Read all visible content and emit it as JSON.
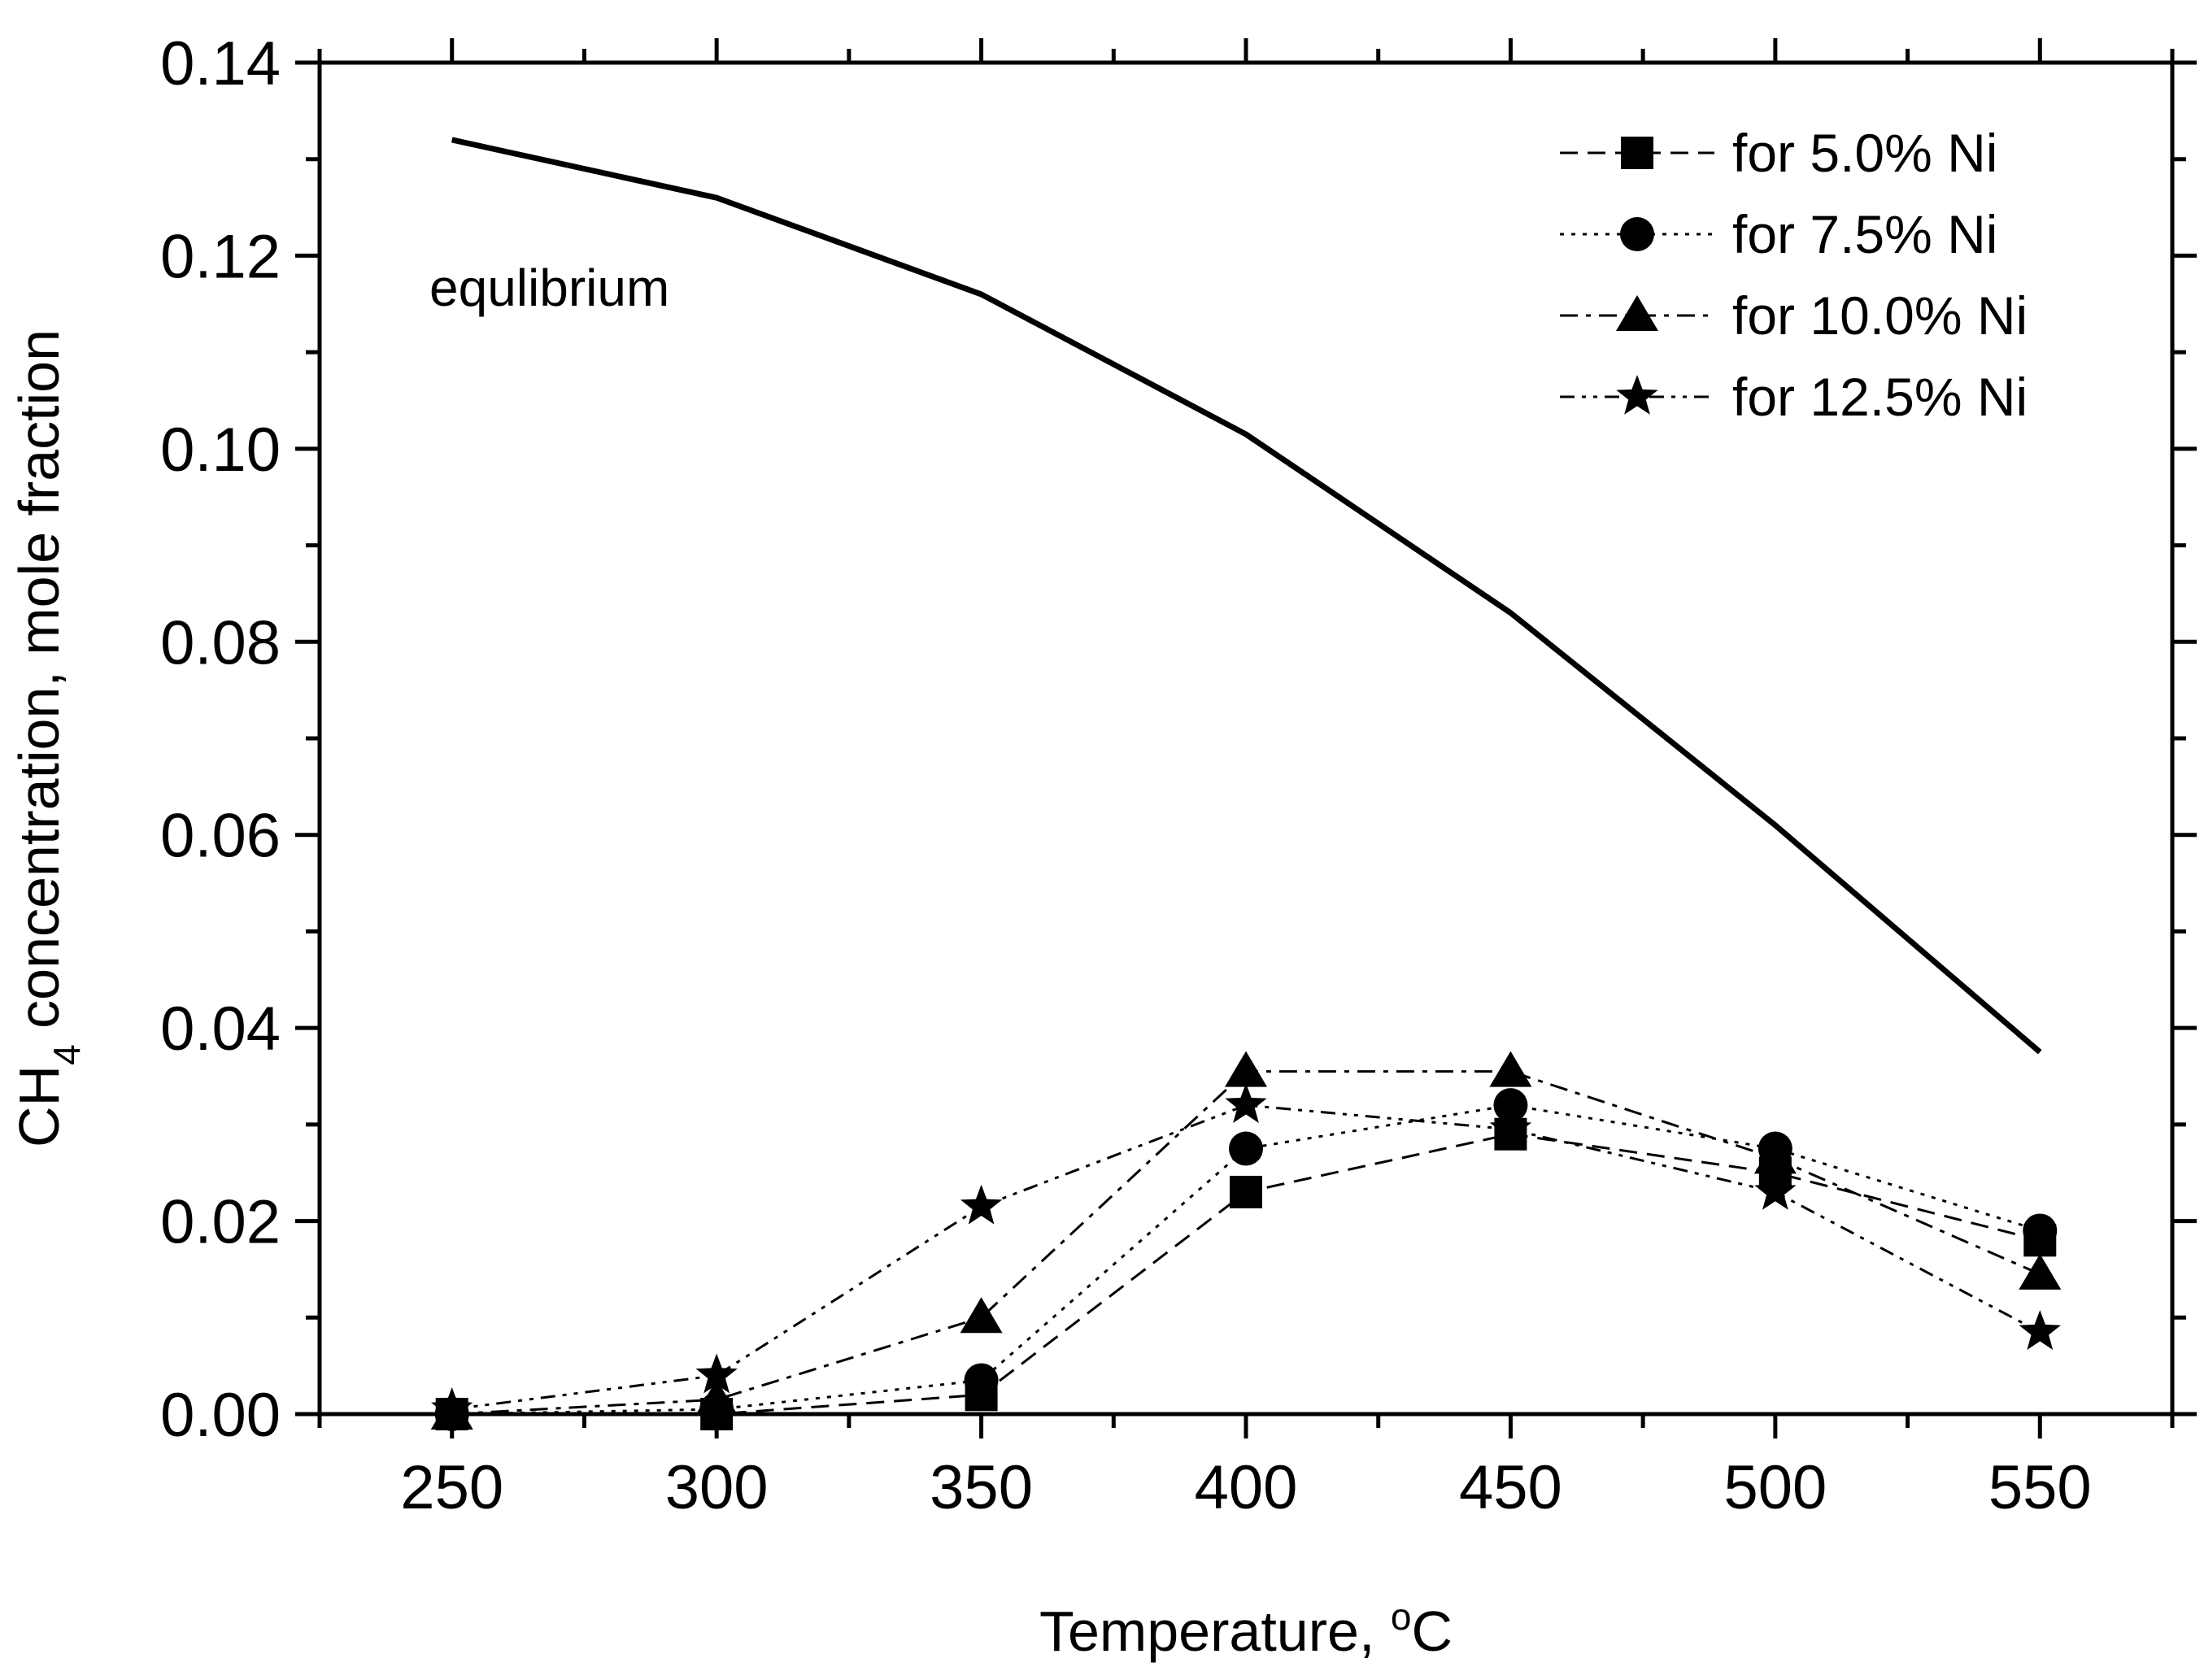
{
  "chart_data": {
    "type": "line",
    "title": "",
    "xlabel": "Temperature, °C",
    "xlabel_parts": {
      "main": "Temperature, ",
      "sup": "o",
      "unit": "C"
    },
    "ylabel": "CH4 concentration, mole fraction",
    "ylabel_parts": {
      "pre": "CH",
      "sub": "4",
      "post": " concentration, mole fraction"
    },
    "xlim": [
      225,
      575
    ],
    "ylim": [
      0,
      0.14
    ],
    "x_ticks": [
      250,
      300,
      350,
      400,
      450,
      500,
      550
    ],
    "x_tick_labels": [
      "250",
      "300",
      "350",
      "400",
      "450",
      "500",
      "550"
    ],
    "y_ticks": [
      0,
      0.02,
      0.04,
      0.06,
      0.08,
      0.1,
      0.12,
      0.14
    ],
    "y_tick_labels": [
      "0.00",
      "0.02",
      "0.04",
      "0.06",
      "0.08",
      "0.10",
      "0.12",
      "0.14"
    ],
    "grid": false,
    "legend_position": "top-right",
    "annotation": "equlibrium",
    "equilibrium": {
      "name": "equlibrium",
      "x": [
        250,
        300,
        350,
        400,
        450,
        500,
        550
      ],
      "y": [
        0.132,
        0.126,
        0.116,
        0.1015,
        0.083,
        0.061,
        0.0375
      ]
    },
    "series": [
      {
        "name": "for 5.0% Ni",
        "marker": "square",
        "dash": "dashed",
        "x": [
          250,
          300,
          350,
          400,
          450,
          500,
          550
        ],
        "y": [
          0.0,
          0.0,
          0.002,
          0.023,
          0.029,
          0.025,
          0.018
        ]
      },
      {
        "name": "for 7.5% Ni",
        "marker": "circle",
        "dash": "dotted",
        "x": [
          250,
          300,
          350,
          400,
          450,
          500,
          550
        ],
        "y": [
          0.0,
          0.0005,
          0.0035,
          0.0275,
          0.032,
          0.0275,
          0.019
        ]
      },
      {
        "name": "for 10.0% Ni",
        "marker": "triangle",
        "dash": "dashdot",
        "x": [
          250,
          300,
          350,
          400,
          450,
          500,
          550
        ],
        "y": [
          0.0,
          0.0015,
          0.01,
          0.0355,
          0.0355,
          0.0265,
          0.0145
        ]
      },
      {
        "name": "for 12.5% Ni",
        "marker": "star",
        "dash": "dashdotdot",
        "x": [
          250,
          300,
          350,
          400,
          450,
          500,
          550
        ],
        "y": [
          0.0005,
          0.004,
          0.0215,
          0.032,
          0.0295,
          0.023,
          0.0085
        ]
      }
    ]
  }
}
